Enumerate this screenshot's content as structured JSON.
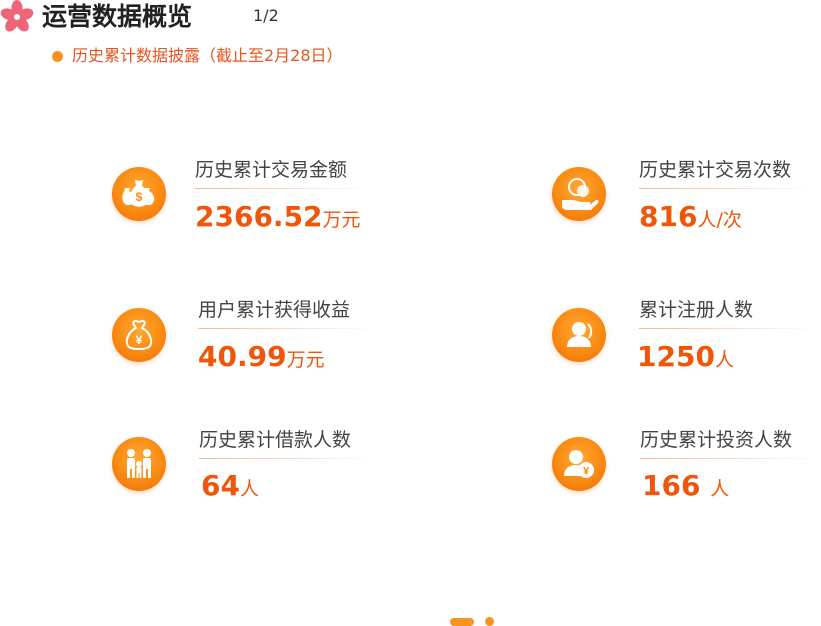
{
  "header": {
    "title": "运营数据概览",
    "page_indicator": "1/2",
    "subtitle": "历史累计数据披露（截止至2月28日）"
  },
  "stats": [
    {
      "label": "历史累计交易金额",
      "value": "2366.52",
      "unit": "万元",
      "icon": "money-bags-icon"
    },
    {
      "label": "历史累计交易次数",
      "value": "816",
      "unit": "人/次",
      "icon": "coin-in-hand-icon"
    },
    {
      "label": "用户累计获得收益",
      "value": "40.99",
      "unit": "万元",
      "icon": "yuan-money-bag-icon"
    },
    {
      "label": "累计注册人数",
      "value": "1250",
      "unit": "人",
      "icon": "user-silhouette-icon"
    },
    {
      "label": "历史累计借款人数",
      "value": "64",
      "unit": "人",
      "icon": "family-icon"
    },
    {
      "label": "历史累计投资人数",
      "value": "166 ",
      "unit": "人",
      "icon": "investor-yuan-icon"
    }
  ],
  "pager": {
    "pages": 2,
    "current": 1
  },
  "colors": {
    "accent": "#f0560a",
    "icon_orange": "#f98a12",
    "subtitle": "#e8541e",
    "label": "#444444"
  }
}
